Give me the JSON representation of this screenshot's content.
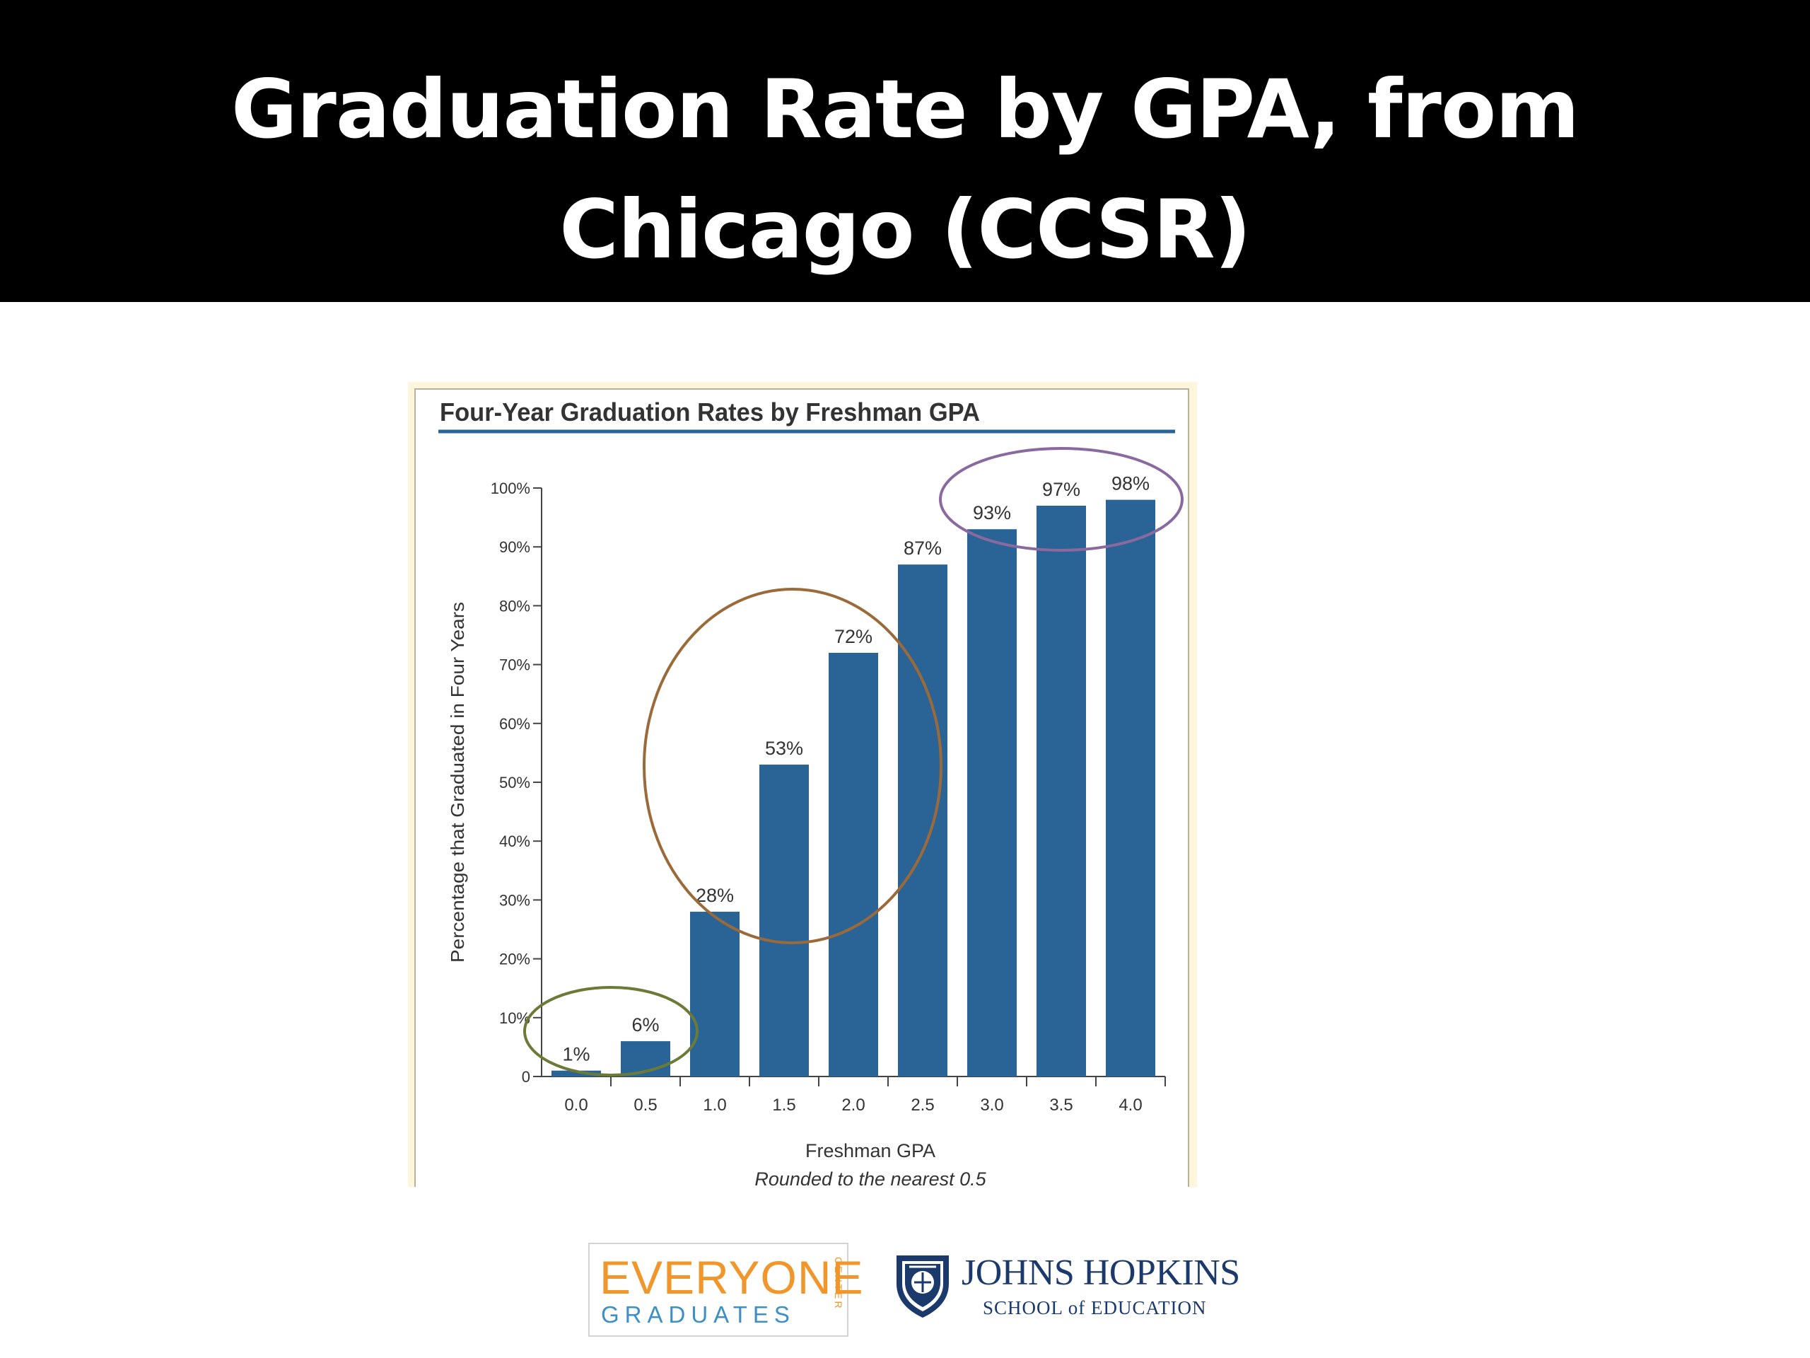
{
  "slide": {
    "title_line1": "Graduation Rate by GPA, from",
    "title_line2": "Chicago (CCSR)"
  },
  "colors": {
    "title_bg": "#000000",
    "bar": "#2a6496",
    "title_rule": "#2a6496",
    "circle_low": "#6b7a36",
    "circle_mid": "#9a6a3a",
    "circle_high": "#8a6a9e"
  },
  "chart_data": {
    "type": "bar",
    "title": "Four-Year Graduation Rates by Freshman GPA",
    "xlabel": "Freshman GPA",
    "xlabel_note": "Rounded to the nearest 0.5",
    "ylabel": "Percentage that Graduated in Four Years",
    "categories": [
      "0.0",
      "0.5",
      "1.0",
      "1.5",
      "2.0",
      "2.5",
      "3.0",
      "3.5",
      "4.0"
    ],
    "values": [
      1,
      6,
      28,
      53,
      72,
      87,
      93,
      97,
      98
    ],
    "data_labels": [
      "1%",
      "6%",
      "28%",
      "53%",
      "72%",
      "87%",
      "93%",
      "97%",
      "98%"
    ],
    "ylim": [
      0,
      100
    ],
    "yticks": [
      "0",
      "10%",
      "20%",
      "30%",
      "40%",
      "50%",
      "60%",
      "70%",
      "80%",
      "90%",
      "100%"
    ],
    "grid": false,
    "legend": "none",
    "highlight_groups": [
      {
        "name": "low",
        "categories": [
          "0.0",
          "0.5"
        ],
        "color": "#6b7a36"
      },
      {
        "name": "mid",
        "categories": [
          "1.0",
          "1.5",
          "2.0"
        ],
        "color": "#9a6a3a"
      },
      {
        "name": "high",
        "categories": [
          "3.0",
          "3.5",
          "4.0"
        ],
        "color": "#8a6a9e"
      }
    ]
  },
  "logos": {
    "everyone_top": "EVERYONE",
    "everyone_bottom": "GRADUATES",
    "everyone_side": "CENTER",
    "jh_name": "JOHNS HOPKINS",
    "jh_school": "SCHOOL of EDUCATION"
  }
}
